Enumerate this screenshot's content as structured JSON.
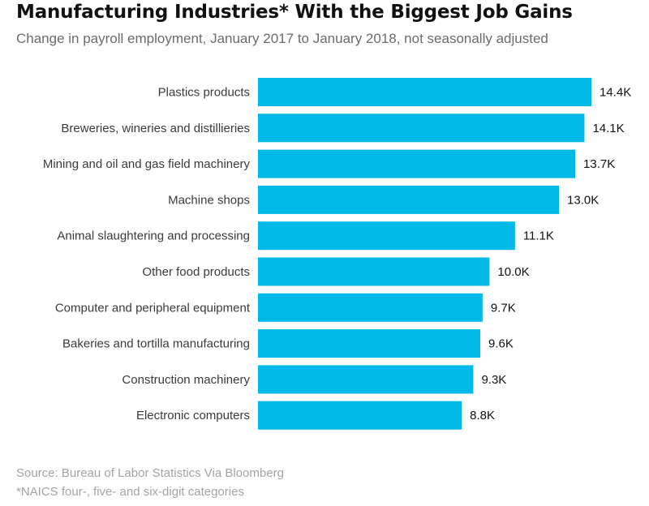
{
  "chart_data": {
    "type": "bar",
    "orientation": "horizontal",
    "title": "Manufacturing Industries* With the Biggest Job Gains",
    "subtitle": "Change in payroll employment, January 2017 to January 2018, not seasonally adjusted",
    "categories": [
      "Plastics products",
      "Breweries, wineries and distillieries",
      "Mining and oil and gas field machinery",
      "Machine shops",
      "Animal slaughtering and processing",
      "Other food products",
      "Computer and peripheral equipment",
      "Bakeries and tortilla manufacturing",
      "Construction machinery",
      "Electronic computers"
    ],
    "values": [
      14.4,
      14.1,
      13.7,
      13.0,
      11.1,
      10.0,
      9.7,
      9.6,
      9.3,
      8.8
    ],
    "value_labels": [
      "14.4K",
      "14.1K",
      "13.7K",
      "13.0K",
      "11.1K",
      "10.0K",
      "9.7K",
      "9.6K",
      "9.3K",
      "8.8K"
    ],
    "unit": "K",
    "xlim": [
      0,
      14.4
    ],
    "bar_color": "#00b9e8",
    "grid": false,
    "legend": "none"
  },
  "footer": {
    "source": "Source: Bureau of Labor Statistics Via Bloomberg",
    "note": "*NAICS four-, five- and six-digit categories"
  }
}
